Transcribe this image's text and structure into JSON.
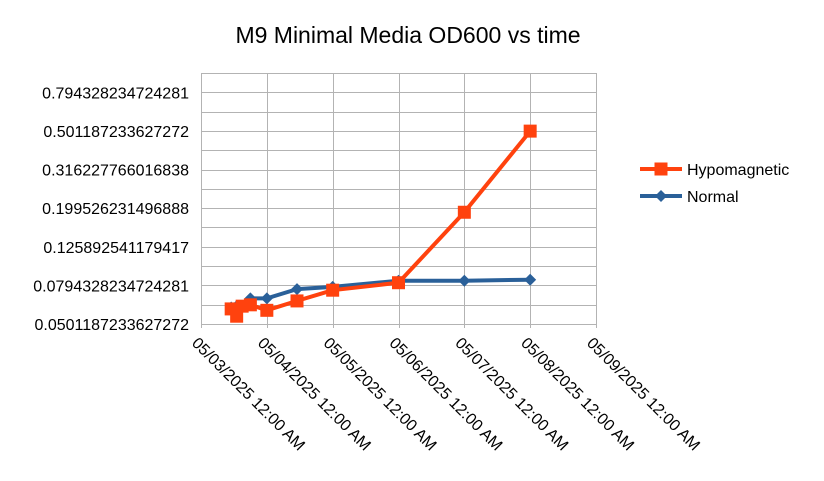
{
  "chart_data": {
    "type": "line",
    "title": "M9 Minimal Media OD600 vs time",
    "xlabel": "",
    "ylabel": "",
    "y_scale": "log",
    "y_tick_labels": [
      "0.794328234724281",
      "0.501187233627272",
      "0.316227766016838",
      "0.199526231496888",
      "0.125892541179417",
      "0.0794328234724281",
      "0.0501187233627272"
    ],
    "y_ticks": [
      0.794328234724281,
      0.501187233627272,
      0.316227766016838,
      0.199526231496888,
      0.125892541179417,
      0.0794328234724281,
      0.0501187233627272
    ],
    "ylim": [
      0.0501187233627272,
      1.0
    ],
    "x_tick_labels": [
      "05/03/2025 12:00 AM",
      "05/04/2025 12:00 AM",
      "05/05/2025 12:00 AM",
      "05/06/2025 12:00 AM",
      "05/07/2025 12:00 AM",
      "05/08/2025 12:00 AM",
      "05/09/2025 12:00 AM"
    ],
    "xlim": [
      "2025-05-03T00:00",
      "2025-05-09T00:00"
    ],
    "grid": true,
    "legend_position": "right",
    "series": [
      {
        "name": "Hypomagnetic",
        "color": "#ff420e",
        "marker": "square",
        "points": [
          {
            "x": "2025-05-03T11:00",
            "y": 0.06
          },
          {
            "x": "2025-05-03T13:00",
            "y": 0.055
          },
          {
            "x": "2025-05-03T15:00",
            "y": 0.062
          },
          {
            "x": "2025-05-03T18:00",
            "y": 0.063
          },
          {
            "x": "2025-05-04T00:00",
            "y": 0.059
          },
          {
            "x": "2025-05-04T11:00",
            "y": 0.066
          },
          {
            "x": "2025-05-05T00:00",
            "y": 0.075
          },
          {
            "x": "2025-05-06T00:00",
            "y": 0.082
          },
          {
            "x": "2025-05-07T00:00",
            "y": 0.19
          },
          {
            "x": "2025-05-08T00:00",
            "y": 0.5
          }
        ]
      },
      {
        "name": "Normal",
        "color": "#2a6099",
        "marker": "diamond",
        "points": [
          {
            "x": "2025-05-03T11:00",
            "y": 0.061
          },
          {
            "x": "2025-05-03T13:00",
            "y": 0.062
          },
          {
            "x": "2025-05-03T18:00",
            "y": 0.068
          },
          {
            "x": "2025-05-04T00:00",
            "y": 0.068
          },
          {
            "x": "2025-05-04T11:00",
            "y": 0.076
          },
          {
            "x": "2025-05-05T00:00",
            "y": 0.078
          },
          {
            "x": "2025-05-06T00:00",
            "y": 0.084
          },
          {
            "x": "2025-05-07T00:00",
            "y": 0.084
          },
          {
            "x": "2025-05-08T00:00",
            "y": 0.085
          }
        ]
      }
    ]
  }
}
